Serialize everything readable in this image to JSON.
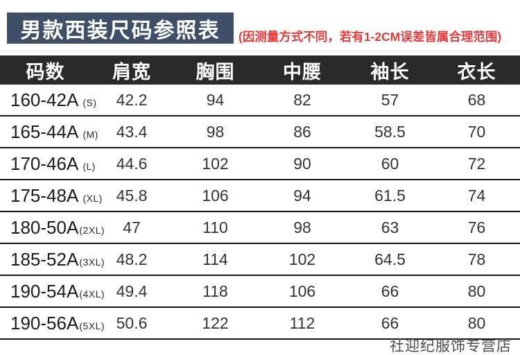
{
  "header": {
    "title": "男款西装尺码参照表",
    "note": "(因测量方式不同，若有1-2CM误差皆属合理范围)"
  },
  "watermark": "社迎纪服饰专营店",
  "colors": {
    "title_bg": "#404f68",
    "note_red": "#e13b3b",
    "table_header_bg": "#2a2a2a",
    "row_border": "#161616",
    "text_dark": "#1b1b1b",
    "watermark_gray": "#4c4c4c"
  },
  "chart_data": {
    "type": "table",
    "title": "男款西装尺码参照表",
    "columns": [
      "码数",
      "肩宽",
      "胸围",
      "中腰",
      "袖长",
      "衣长"
    ],
    "rows": [
      {
        "size": "160-42A",
        "fit": "(S)",
        "values": [
          "42.2",
          "94",
          "82",
          "57",
          "68"
        ]
      },
      {
        "size": "165-44A",
        "fit": "(M)",
        "values": [
          "43.4",
          "98",
          "86",
          "58.5",
          "70"
        ]
      },
      {
        "size": "170-46A",
        "fit": "(L)",
        "values": [
          "44.6",
          "102",
          "90",
          "60",
          "72"
        ]
      },
      {
        "size": "175-48A",
        "fit": "(XL)",
        "values": [
          "45.8",
          "106",
          "94",
          "61.5",
          "74"
        ]
      },
      {
        "size": "180-50A",
        "fit": "(2XL)",
        "values": [
          "47",
          "110",
          "98",
          "63",
          "76"
        ]
      },
      {
        "size": "185-52A",
        "fit": "(3XL)",
        "values": [
          "48.2",
          "114",
          "102",
          "64.5",
          "78"
        ]
      },
      {
        "size": "190-54A",
        "fit": "(4XL)",
        "values": [
          "49.4",
          "118",
          "106",
          "66",
          "80"
        ]
      },
      {
        "size": "190-56A",
        "fit": "(5XL)",
        "values": [
          "50.6",
          "122",
          "112",
          "66",
          "80"
        ]
      }
    ]
  }
}
